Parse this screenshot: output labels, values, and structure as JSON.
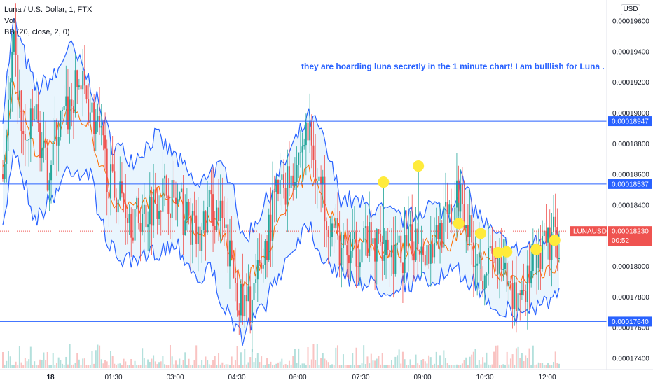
{
  "legend": {
    "symbol": "Luna / U.S. Dollar, 1, FTX",
    "vol": "Vol",
    "bb": "BB (20, close, 2, 0)"
  },
  "currency_button": "USD",
  "annotation_text": "they are hoarding luna secretly in the 1 minute chart! I am bulllish for Luna . entr",
  "colors": {
    "up": "#26a69a",
    "down": "#ef5350",
    "bb_band": "#2962ff",
    "bb_fill": "#e3f2fd",
    "bb_basis": "#ff6d00",
    "level_line": "#2962ff",
    "marker": "#ffeb3b",
    "price_label": "#ef5350"
  },
  "chart_data": {
    "type": "candlestick",
    "title": "Luna / U.S. Dollar, 1, FTX",
    "ylim": [
      0.0001735,
      0.0001975
    ],
    "y_ticks": [
      "0.00019600",
      "0.00019400",
      "0.00019200",
      "0.00019000",
      "0.00018800",
      "0.00018600",
      "0.00018400",
      "0.00018000",
      "0.00017800",
      "0.00017600",
      "0.00017400"
    ],
    "x_ticks": [
      "18",
      "01:30",
      "03:00",
      "04:30",
      "06:00",
      "07:30",
      "09:00",
      "10:30",
      "12:00"
    ],
    "price_path": [
      [
        0,
        0.000186
      ],
      [
        1,
        0.000194
      ],
      [
        2,
        0.0001875
      ],
      [
        3,
        0.00019
      ],
      [
        4,
        0.000186
      ],
      [
        5,
        0.000189
      ],
      [
        6,
        0.00019
      ],
      [
        7,
        0.000192
      ],
      [
        8,
        0.0001905
      ],
      [
        9,
        0.000188
      ],
      [
        10,
        0.000185
      ],
      [
        11,
        0.0001845
      ],
      [
        12,
        0.000183
      ],
      [
        13,
        0.0001835
      ],
      [
        14,
        0.0001845
      ],
      [
        15,
        0.000185
      ],
      [
        16,
        0.000184
      ],
      [
        17,
        0.000183
      ],
      [
        18,
        0.0001815
      ],
      [
        19,
        0.000184
      ],
      [
        20,
        0.000183
      ],
      [
        21,
        0.00018
      ],
      [
        22,
        0.000177
      ],
      [
        23,
        0.000178
      ],
      [
        24,
        0.000181
      ],
      [
        25,
        0.0001845
      ],
      [
        26,
        0.0001855
      ],
      [
        27,
        0.000187
      ],
      [
        28,
        0.000189
      ],
      [
        29,
        0.0001855
      ],
      [
        30,
        0.000183
      ],
      [
        31,
        0.000181
      ],
      [
        32,
        0.0001805
      ],
      [
        33,
        0.000182
      ],
      [
        34,
        0.000181
      ],
      [
        35,
        0.000182
      ],
      [
        36,
        0.0001805
      ],
      [
        37,
        0.000181
      ],
      [
        38,
        0.000182
      ],
      [
        39,
        0.000181
      ],
      [
        40,
        0.0001825
      ],
      [
        41,
        0.000183
      ],
      [
        42,
        0.000185
      ],
      [
        43,
        0.0001815
      ],
      [
        44,
        0.00018
      ],
      [
        45,
        0.0001805
      ],
      [
        46,
        0.000179
      ],
      [
        47,
        0.000178
      ],
      [
        48,
        0.000179
      ],
      [
        49,
        0.00018
      ],
      [
        50,
        0.0001815
      ],
      [
        51,
        0.000182
      ]
    ],
    "bb_upper": [
      [
        0,
        0.00019
      ],
      [
        1,
        0.000196
      ],
      [
        3,
        0.0001915
      ],
      [
        5,
        0.0001925
      ],
      [
        6,
        0.0001945
      ],
      [
        8,
        0.000192
      ],
      [
        9,
        0.00019
      ],
      [
        10,
        0.000188
      ],
      [
        12,
        0.000187
      ],
      [
        14,
        0.0001885
      ],
      [
        16,
        0.000187
      ],
      [
        18,
        0.000185
      ],
      [
        19,
        0.0001865
      ],
      [
        21,
        0.000186
      ],
      [
        22,
        0.0001815
      ],
      [
        24,
        0.000184
      ],
      [
        26,
        0.000187
      ],
      [
        28,
        0.0001897
      ],
      [
        29,
        0.000189
      ],
      [
        31,
        0.0001845
      ],
      [
        33,
        0.000184
      ],
      [
        35,
        0.0001835
      ],
      [
        37,
        0.000183
      ],
      [
        39,
        0.000184
      ],
      [
        41,
        0.0001835
      ],
      [
        42,
        0.0001858
      ],
      [
        43,
        0.000184
      ],
      [
        45,
        0.000182
      ],
      [
        47,
        0.000181
      ],
      [
        49,
        0.0001815
      ],
      [
        51,
        0.0001825
      ]
    ],
    "bb_lower": [
      [
        0,
        0.000182
      ],
      [
        1,
        0.000188
      ],
      [
        3,
        0.000183
      ],
      [
        5,
        0.000185
      ],
      [
        6,
        0.0001865
      ],
      [
        8,
        0.000186
      ],
      [
        9,
        0.000183
      ],
      [
        10,
        0.000181
      ],
      [
        12,
        0.00018
      ],
      [
        14,
        0.000181
      ],
      [
        16,
        0.0001815
      ],
      [
        18,
        0.000179
      ],
      [
        19,
        0.00018
      ],
      [
        21,
        0.000176
      ],
      [
        22,
        0.0001755
      ],
      [
        24,
        0.0001775
      ],
      [
        26,
        0.0001805
      ],
      [
        28,
        0.000183
      ],
      [
        29,
        0.000181
      ],
      [
        31,
        0.0001795
      ],
      [
        33,
        0.000179
      ],
      [
        35,
        0.0001785
      ],
      [
        37,
        0.000179
      ],
      [
        39,
        0.000179
      ],
      [
        41,
        0.0001795
      ],
      [
        42,
        0.0001795
      ],
      [
        43,
        0.000179
      ],
      [
        45,
        0.0001775
      ],
      [
        47,
        0.0001768
      ],
      [
        49,
        0.0001775
      ],
      [
        51,
        0.000178
      ]
    ],
    "horizontal_levels": [
      {
        "value": 0.00018947,
        "label": "0.00018947"
      },
      {
        "value": 0.00018537,
        "label": "0.00018537"
      },
      {
        "value": 0.0001764,
        "label": "0.00017640"
      }
    ],
    "last_price": {
      "symbol": "LUNAUSD",
      "value": 0.0001823,
      "label": "0.00018230",
      "countdown": "00:52"
    },
    "markers": [
      {
        "i": 34.9,
        "value": 0.0001855
      },
      {
        "i": 38.1,
        "value": 0.00018655
      },
      {
        "i": 41.8,
        "value": 0.0001828
      },
      {
        "i": 43.8,
        "value": 0.00018215
      },
      {
        "i": 45.4,
        "value": 0.0001809
      },
      {
        "i": 46.2,
        "value": 0.00018095
      },
      {
        "i": 48.9,
        "value": 0.0001811
      },
      {
        "i": 50.6,
        "value": 0.0001817
      }
    ]
  }
}
